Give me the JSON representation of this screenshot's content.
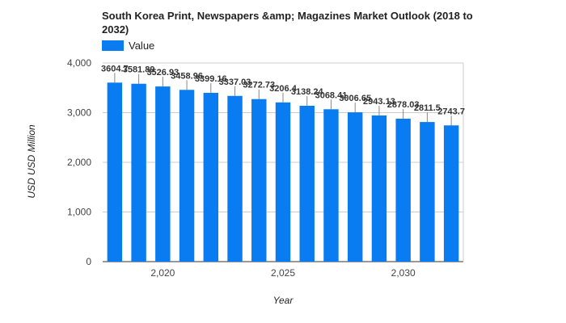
{
  "chart_data": {
    "type": "bar",
    "title": "South Korea Print, Newspapers &amp; Magazines Market Outlook (2018 to 2032)",
    "xlabel": "Year",
    "ylabel": "USD USD Million",
    "legend": {
      "label": "Value",
      "placement": "top-left"
    },
    "color": "#0a7cf2",
    "grid": true,
    "x": [
      2018,
      2019,
      2020,
      2021,
      2022,
      2023,
      2024,
      2025,
      2026,
      2027,
      2028,
      2029,
      2030,
      2031,
      2032
    ],
    "values": [
      3604.7,
      3581.89,
      3526.93,
      3458.96,
      3399.16,
      3337.03,
      3272.73,
      3206.4,
      3138.24,
      3068.41,
      3006.65,
      2943.13,
      2878.03,
      2811.5,
      2743.7
    ],
    "value_labels": [
      "3604.7",
      "3581.89",
      "3526.93",
      "3458.96",
      "3399.16",
      "3337.03",
      "3272.73",
      "3206.4",
      "3138.24",
      "3068.41",
      "3006.65",
      "2943.13",
      "2878.03",
      "2811.5",
      "2743.7"
    ],
    "ylim": [
      0,
      4000
    ],
    "yticks": [
      0,
      1000,
      2000,
      3000,
      4000
    ],
    "ytick_labels": [
      "0",
      "1,000",
      "2,000",
      "3,000",
      "4,000"
    ],
    "xticks": [
      2020,
      2025,
      2030
    ],
    "xtick_labels": [
      "2,020",
      "2,025",
      "2,030"
    ]
  }
}
